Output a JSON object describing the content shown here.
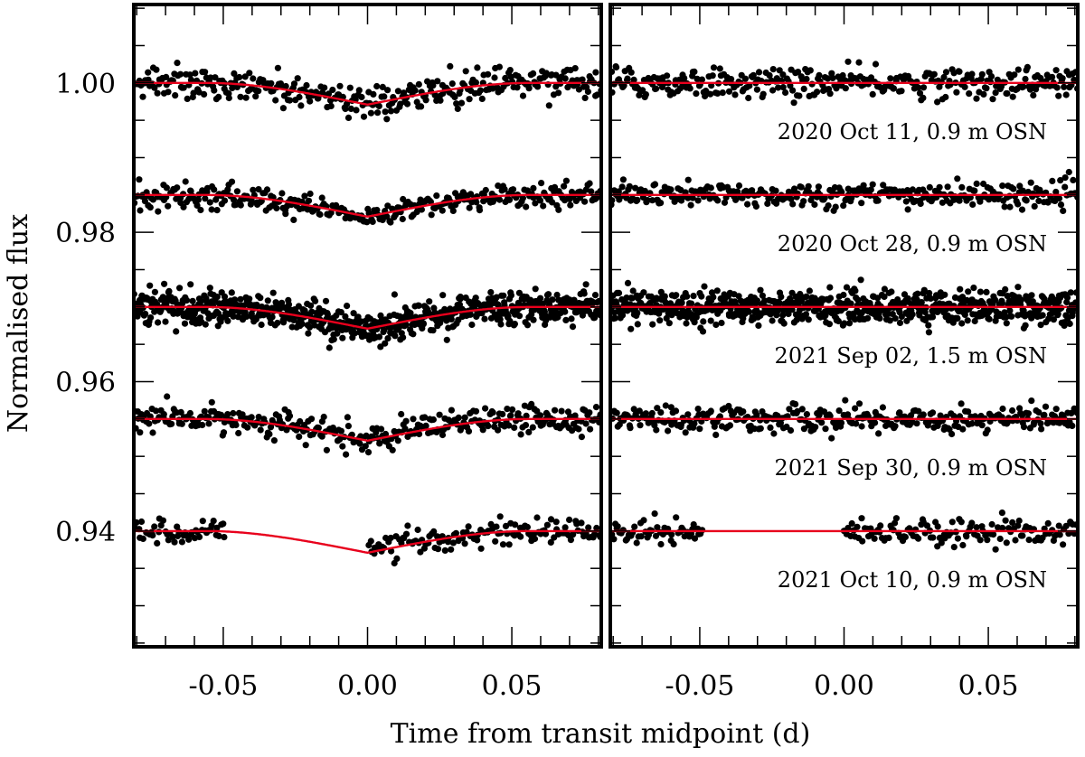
{
  "chart_data": {
    "type": "scatter",
    "xlabel": "Time from transit midpoint (d)",
    "ylabel": "Normalised flux",
    "xlim": [
      -0.081,
      0.081
    ],
    "ylim": [
      0.9245,
      1.0105
    ],
    "x_ticks": [
      -0.05,
      0.0,
      0.05
    ],
    "x_tick_labels": [
      "-0.05",
      "0.00",
      "0.05"
    ],
    "y_ticks": [
      0.94,
      0.96,
      0.98,
      1.0
    ],
    "y_tick_labels": [
      "0.94",
      "0.96",
      "0.98",
      "1.00"
    ],
    "transit_model": {
      "ingress_start": -0.056,
      "full_start": -0.049,
      "full_end": 0.049,
      "egress_end": 0.056
    },
    "panels": [
      {
        "name": "transit",
        "content": "light curves with fitted transit model"
      },
      {
        "name": "residuals",
        "content": "residuals of the fit, offset to the same baselines"
      }
    ],
    "series": [
      {
        "name": "2020 Oct 11, 0.9 m OSN",
        "baseline": 1.0,
        "depth": 0.0066,
        "scatter": 0.001,
        "points": 330,
        "gaps": []
      },
      {
        "name": "2020 Oct 28, 0.9 m OSN",
        "baseline": 0.985,
        "depth": 0.0066,
        "scatter": 0.0008,
        "points": 330,
        "gaps": []
      },
      {
        "name": "2021 Sep 02, 1.5 m OSN",
        "baseline": 0.97,
        "depth": 0.0066,
        "scatter": 0.0011,
        "points": 720,
        "gaps": []
      },
      {
        "name": "2021 Sep 30, 0.9 m OSN",
        "baseline": 0.955,
        "depth": 0.0066,
        "scatter": 0.0009,
        "points": 330,
        "gaps": []
      },
      {
        "name": "2021 Oct 10, 0.9 m OSN",
        "baseline": 0.94,
        "depth": 0.0066,
        "scatter": 0.0009,
        "points": 260,
        "gaps": [
          [
            -0.049,
            0.0
          ]
        ]
      }
    ],
    "colors": {
      "model": "#e8001c",
      "points": "#000000",
      "frame": "#000000"
    }
  }
}
